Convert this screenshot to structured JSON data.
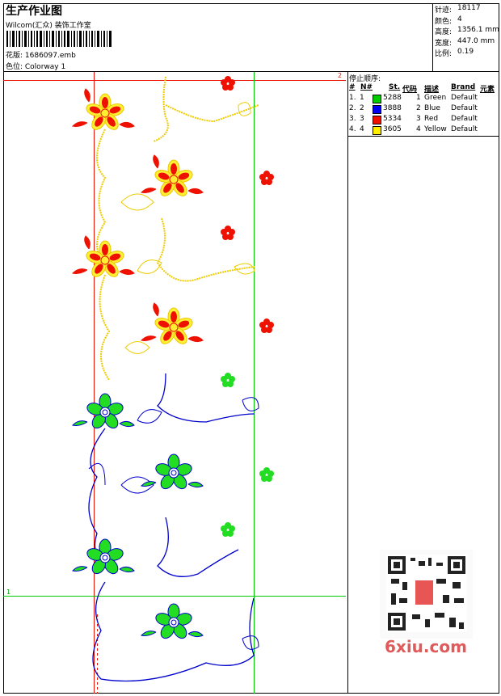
{
  "header": {
    "title": "生产作业图",
    "studio": "Wilcom(汇众) 装饰工作室",
    "design": "花版: 1686097.emb",
    "colorway": "色位: Colorway 1"
  },
  "stats": [
    {
      "label": "针迹:",
      "value": "18117"
    },
    {
      "label": "颜色:",
      "value": "4"
    },
    {
      "label": "高度:",
      "value": "1356.1 mm"
    },
    {
      "label": "宽度:",
      "value": "447.0 mm"
    },
    {
      "label": "比例:",
      "value": "0.19"
    }
  ],
  "stop_sequence": {
    "title": "停止顺序:",
    "columns": [
      "#",
      "N#",
      "St.",
      "代码",
      "描述",
      "Brand",
      "元素"
    ],
    "rows": [
      {
        "index": "1.",
        "n": "1",
        "color": "#00cc00",
        "stitches": "5288",
        "code": "1",
        "description": "Green",
        "brand": "Default"
      },
      {
        "index": "2.",
        "n": "2",
        "color": "#0000ee",
        "stitches": "3888",
        "code": "2",
        "description": "Blue",
        "brand": "Default"
      },
      {
        "index": "3.",
        "n": "3",
        "color": "#ee1100",
        "stitches": "5334",
        "code": "3",
        "description": "Red",
        "brand": "Default"
      },
      {
        "index": "4.",
        "n": "4",
        "color": "#ffee00",
        "stitches": "3605",
        "code": "4",
        "description": "Yellow",
        "brand": "Default"
      }
    ]
  },
  "markers": {
    "top": "2",
    "left": "1"
  },
  "watermark": "6xiu.com"
}
